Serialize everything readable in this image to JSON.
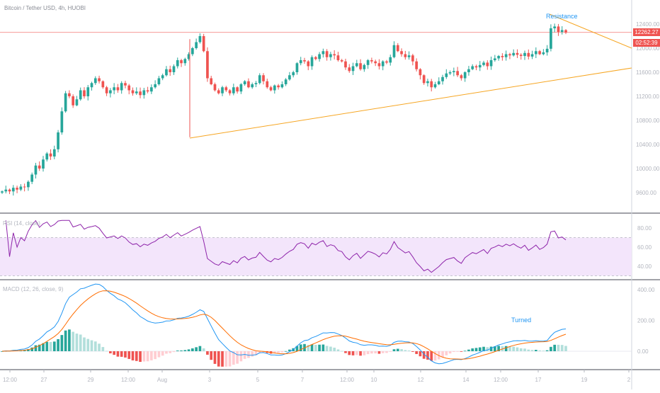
{
  "chart_title": "Bitcoin / Tether USD, 4h, HUOBI",
  "rsi_title": "RSI (14, close)",
  "macd_title": "MACD (12, 26, close, 9)",
  "last_price": "12262.27",
  "countdown": "02:52:39",
  "annotations": {
    "resistance": "Resistance",
    "turned": "Turned"
  },
  "colors": {
    "up": "#26a69a",
    "down": "#ef5350",
    "trend": "#f6a623",
    "macd": "#2196f3",
    "signal": "#ff6d00",
    "rsi": "#8e24aa",
    "rsi_band": "#f3e5fb"
  },
  "price_axis": [
    "12400.00",
    "12000.00",
    "11600.00",
    "11200.00",
    "10800.00",
    "10400.00",
    "10000.00",
    "9600.00"
  ],
  "rsi_axis": [
    "80.00",
    "60.00",
    "40.00"
  ],
  "macd_axis": [
    "400.00",
    "200.00",
    "0.00"
  ],
  "time_axis": [
    "12:00",
    "27",
    "29",
    "12:00",
    "Aug",
    "3",
    "5",
    "7",
    "12:00",
    "10",
    "12",
    "14",
    "12:00",
    "17",
    "19",
    "2"
  ],
  "chart_data": [
    {
      "type": "candlestick",
      "title": "Bitcoin / Tether USD, 4h, HUOBI",
      "ylim": [
        9450,
        12750
      ],
      "x_ticks": [
        "12:00",
        "27",
        "29",
        "12:00",
        "Aug",
        "3",
        "5",
        "7",
        "12:00",
        "10",
        "12",
        "14",
        "12:00",
        "17",
        "19",
        "2"
      ],
      "closes": [
        9620,
        9650,
        9620,
        9680,
        9650,
        9700,
        9690,
        9780,
        9900,
        10050,
        10000,
        10150,
        10250,
        10200,
        10320,
        10600,
        10950,
        11250,
        11200,
        11050,
        11150,
        11300,
        11200,
        11350,
        11420,
        11500,
        11450,
        11350,
        11250,
        11300,
        11350,
        11300,
        11420,
        11380,
        11300,
        11250,
        11280,
        11220,
        11300,
        11280,
        11350,
        11400,
        11500,
        11550,
        11650,
        11600,
        11700,
        11800,
        11750,
        11820,
        11900,
        12000,
        12100,
        12200,
        11950,
        11500,
        11400,
        11300,
        11250,
        11350,
        11300,
        11250,
        11350,
        11280,
        11400,
        11450,
        11350,
        11400,
        11420,
        11550,
        11450,
        11350,
        11300,
        11380,
        11350,
        11400,
        11480,
        11550,
        11600,
        11750,
        11800,
        11780,
        11700,
        11850,
        11820,
        11900,
        11950,
        11850,
        11900,
        11880,
        11800,
        11780,
        11680,
        11620,
        11700,
        11750,
        11650,
        11720,
        11800,
        11780,
        11750,
        11700,
        11780,
        11760,
        11850,
        12050,
        11950,
        11900,
        11850,
        11880,
        11780,
        11650,
        11550,
        11420,
        11450,
        11350,
        11400,
        11450,
        11520,
        11580,
        11600,
        11620,
        11550,
        11500,
        11600,
        11650,
        11700,
        11680,
        11720,
        11760,
        11700,
        11800,
        11830,
        11870,
        11850,
        11900,
        11880,
        11920,
        11890,
        11870,
        11920,
        11860,
        11900,
        11950,
        11900,
        11930,
        11990,
        12330,
        12360,
        12270,
        12300,
        12262
      ],
      "series": [
        {
          "name": "RSI (14, close)",
          "ylim": [
            25,
            90
          ],
          "band": [
            30,
            70
          ]
        },
        {
          "name": "MACD (12, 26, close, 9)",
          "ylim": [
            -120,
            420
          ]
        }
      ]
    }
  ]
}
